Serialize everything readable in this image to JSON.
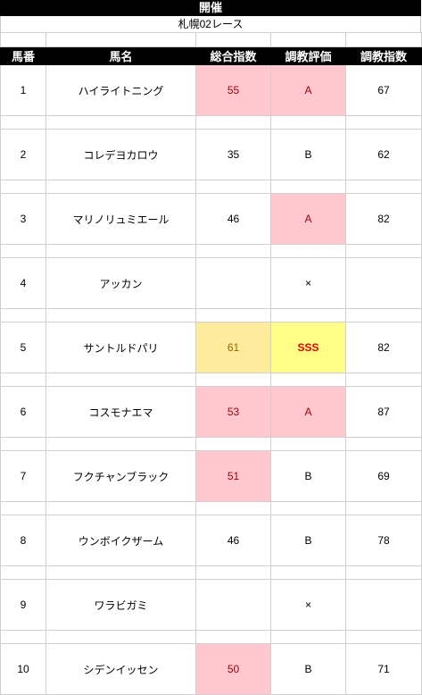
{
  "header": {
    "title": "開催",
    "race": "札幌02レース"
  },
  "columns": [
    "馬番",
    "馬名",
    "総合指数",
    "調教評価",
    "調教指数"
  ],
  "rows": [
    {
      "no": "1",
      "name": "ハイライトニング",
      "total": "55",
      "grade": "A",
      "training": "67"
    },
    {
      "no": "2",
      "name": "コレデヨカロウ",
      "total": "35",
      "grade": "B",
      "training": "62"
    },
    {
      "no": "3",
      "name": "マリノリュミエール",
      "total": "46",
      "grade": "A",
      "training": "82"
    },
    {
      "no": "4",
      "name": "アッカン",
      "total": "",
      "grade": "×",
      "training": ""
    },
    {
      "no": "5",
      "name": "サントルドパリ",
      "total": "61",
      "grade": "SSS",
      "training": "82"
    },
    {
      "no": "6",
      "name": "コスモナエマ",
      "total": "53",
      "grade": "A",
      "training": "87"
    },
    {
      "no": "7",
      "name": "フクチャンブラック",
      "total": "51",
      "grade": "B",
      "training": "69"
    },
    {
      "no": "8",
      "name": "ウンボイクザーム",
      "total": "46",
      "grade": "B",
      "training": "78"
    },
    {
      "no": "9",
      "name": "ワラビガミ",
      "total": "",
      "grade": "×",
      "training": ""
    },
    {
      "no": "10",
      "name": "シデンイッセン",
      "total": "50",
      "grade": "B",
      "training": "71"
    }
  ],
  "colors": {
    "header_bg": "#000000",
    "highlight_pink": "#ffc7ce",
    "highlight_pink_text": "#9c0006",
    "highlight_yellow": "#ffeb9c",
    "highlight_sss": "#ffff88",
    "sss_text": "#e00000"
  }
}
